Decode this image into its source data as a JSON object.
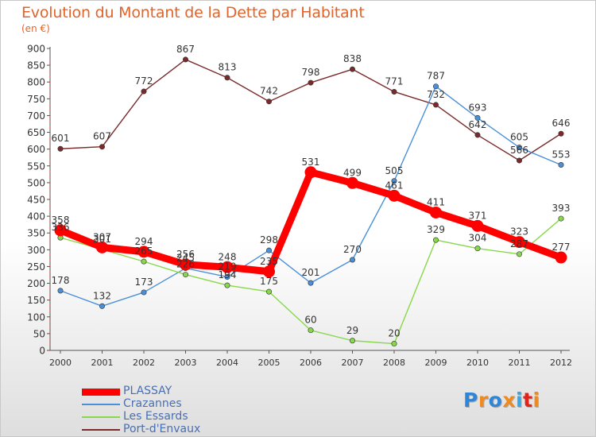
{
  "chart_data": {
    "type": "line",
    "title": "Evolution du Montant de la Dette par Habitant",
    "subtitle": "(en €)",
    "categories": [
      "2000",
      "2001",
      "2002",
      "2003",
      "2004",
      "2005",
      "2006",
      "2007",
      "2008",
      "2009",
      "2010",
      "2011",
      "2012"
    ],
    "ylim": [
      0,
      900
    ],
    "yticks": [
      0,
      50,
      100,
      150,
      200,
      250,
      300,
      350,
      400,
      450,
      500,
      550,
      600,
      650,
      700,
      750,
      800,
      850,
      900
    ],
    "grid": false,
    "legend_position": "bottom-left",
    "series": [
      {
        "name": "PLASSAY",
        "color": "#ff0000",
        "values": [
          358,
          307,
          294,
          256,
          248,
          235,
          531,
          499,
          461,
          411,
          371,
          323,
          277
        ]
      },
      {
        "name": "Crazannes",
        "color": "#4a90d9",
        "values": [
          178,
          132,
          173,
          245,
          219,
          298,
          201,
          270,
          505,
          787,
          693,
          605,
          553
        ]
      },
      {
        "name": "Les Essards",
        "color": "#88d84a",
        "values": [
          336,
          301,
          265,
          226,
          194,
          175,
          60,
          29,
          20,
          329,
          304,
          287,
          393
        ]
      },
      {
        "name": "Port-d'Envaux",
        "color": "#7a2a2a",
        "values": [
          601,
          607,
          772,
          867,
          813,
          742,
          798,
          838,
          771,
          732,
          642,
          566,
          646
        ]
      }
    ]
  },
  "logo": {
    "letters": [
      "P",
      "r",
      "o",
      "x",
      "i",
      "t",
      "i"
    ],
    "colors": [
      "#2f86d6",
      "#f08a1e",
      "#2f86d6",
      "#f08a1e",
      "#3aa7e0",
      "#e2231a",
      "#f08a1e"
    ]
  }
}
